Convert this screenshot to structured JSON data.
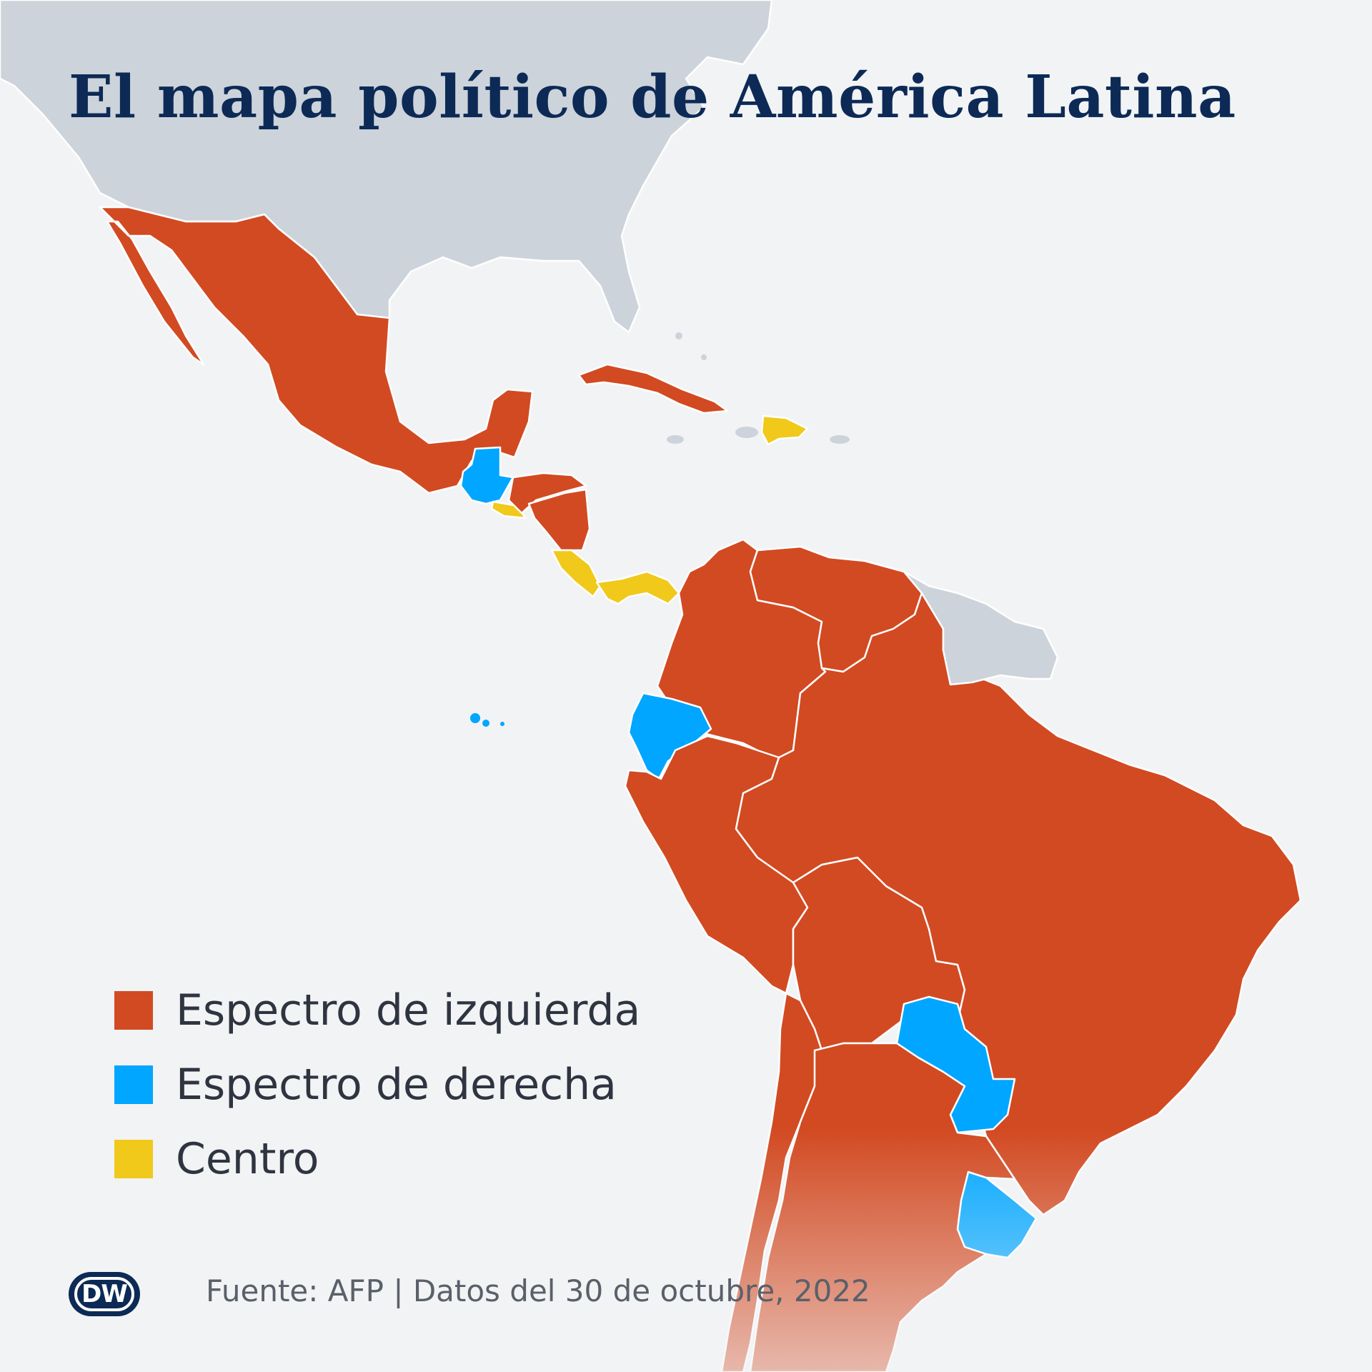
{
  "title": "El mapa político de América Latina",
  "legend": [
    {
      "label": "Espectro de izquierda",
      "color": "#d24a22"
    },
    {
      "label": "Espectro de derecha",
      "color": "#00a6ff"
    },
    {
      "label": "Centro",
      "color": "#f0c91b"
    }
  ],
  "colors": {
    "background": "#f2f3f5",
    "non_latam_land": "#cdd3da",
    "border": "#ffffff",
    "title": "#0c2a55"
  },
  "source_text": "Fuente:  AFP | Datos del 30 de octubre, 2022",
  "logo": {
    "text": "DW"
  },
  "regions": [
    {
      "name": "north-america",
      "category": "other"
    },
    {
      "name": "mexico",
      "category": "left"
    },
    {
      "name": "guatemala",
      "category": "right"
    },
    {
      "name": "el-salvador",
      "category": "center"
    },
    {
      "name": "honduras",
      "category": "left"
    },
    {
      "name": "nicaragua",
      "category": "left"
    },
    {
      "name": "costa-rica",
      "category": "center"
    },
    {
      "name": "panama",
      "category": "center"
    },
    {
      "name": "cuba",
      "category": "left"
    },
    {
      "name": "dominican-republic",
      "category": "center"
    },
    {
      "name": "colombia",
      "category": "left"
    },
    {
      "name": "venezuela",
      "category": "left"
    },
    {
      "name": "ecuador",
      "category": "right"
    },
    {
      "name": "peru",
      "category": "left"
    },
    {
      "name": "bolivia",
      "category": "left"
    },
    {
      "name": "brazil",
      "category": "left"
    },
    {
      "name": "paraguay",
      "category": "right"
    },
    {
      "name": "uruguay",
      "category": "right"
    },
    {
      "name": "chile",
      "category": "left"
    },
    {
      "name": "argentina",
      "category": "left"
    },
    {
      "name": "guianas",
      "category": "other"
    }
  ]
}
